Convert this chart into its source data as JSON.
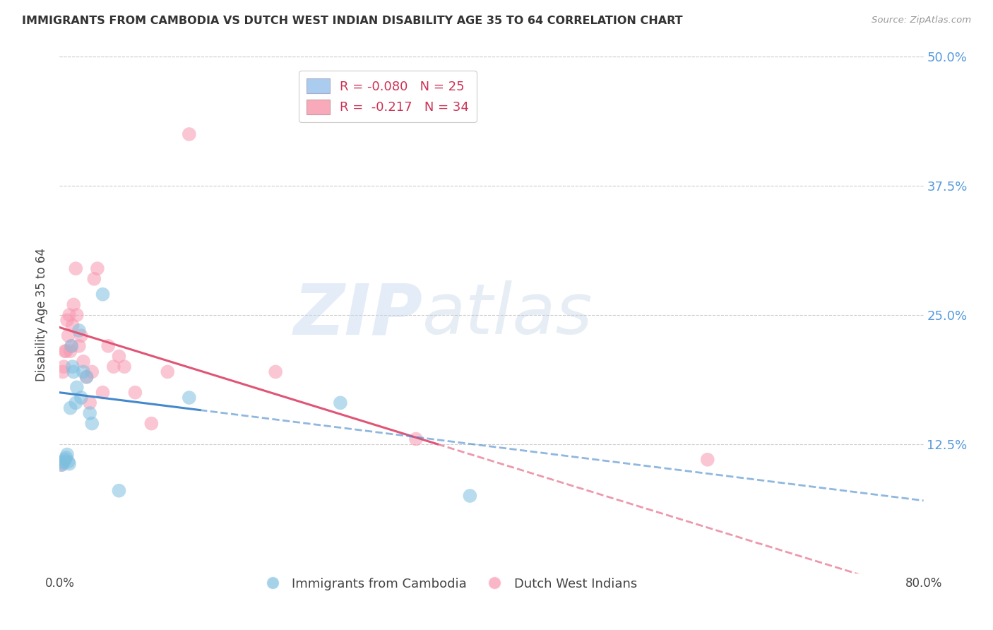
{
  "title": "IMMIGRANTS FROM CAMBODIA VS DUTCH WEST INDIAN DISABILITY AGE 35 TO 64 CORRELATION CHART",
  "source": "Source: ZipAtlas.com",
  "ylabel": "Disability Age 35 to 64",
  "xlim": [
    0.0,
    0.8
  ],
  "ylim": [
    0.0,
    0.5
  ],
  "ytick_positions": [
    0.125,
    0.25,
    0.375,
    0.5
  ],
  "ytick_labels": [
    "12.5%",
    "25.0%",
    "37.5%",
    "50.0%"
  ],
  "watermark_zip": "ZIP",
  "watermark_atlas": "atlas",
  "cambodia_color": "#7fbfdf",
  "dutch_color": "#f898b0",
  "cambodia_line_color": "#4488cc",
  "dutch_line_color": "#e05575",
  "background_color": "#ffffff",
  "grid_color": "#cccccc",
  "title_color": "#333333",
  "right_axis_color": "#5599dd",
  "legend_cam_color": "#aaccee",
  "legend_dutch_color": "#f8aabb",
  "cambodia_x": [
    0.002,
    0.003,
    0.004,
    0.005,
    0.006,
    0.007,
    0.008,
    0.009,
    0.01,
    0.011,
    0.012,
    0.013,
    0.015,
    0.016,
    0.018,
    0.02,
    0.022,
    0.025,
    0.028,
    0.03,
    0.04,
    0.055,
    0.12,
    0.26,
    0.38
  ],
  "cambodia_y": [
    0.105,
    0.107,
    0.108,
    0.11,
    0.112,
    0.115,
    0.108,
    0.106,
    0.16,
    0.22,
    0.2,
    0.195,
    0.165,
    0.18,
    0.235,
    0.17,
    0.195,
    0.19,
    0.155,
    0.145,
    0.27,
    0.08,
    0.17,
    0.165,
    0.075
  ],
  "dutch_x": [
    0.002,
    0.003,
    0.004,
    0.005,
    0.006,
    0.007,
    0.008,
    0.009,
    0.01,
    0.011,
    0.012,
    0.013,
    0.015,
    0.016,
    0.018,
    0.02,
    0.022,
    0.025,
    0.028,
    0.03,
    0.032,
    0.035,
    0.04,
    0.045,
    0.05,
    0.055,
    0.06,
    0.07,
    0.085,
    0.1,
    0.12,
    0.2,
    0.33,
    0.6
  ],
  "dutch_y": [
    0.105,
    0.195,
    0.2,
    0.215,
    0.215,
    0.245,
    0.23,
    0.25,
    0.215,
    0.22,
    0.24,
    0.26,
    0.295,
    0.25,
    0.22,
    0.23,
    0.205,
    0.19,
    0.165,
    0.195,
    0.285,
    0.295,
    0.175,
    0.22,
    0.2,
    0.21,
    0.2,
    0.175,
    0.145,
    0.195,
    0.425,
    0.195,
    0.13,
    0.11
  ],
  "cam_line_x_end": 0.13,
  "dutch_line_x_end": 0.35,
  "cam_line_start_y": 0.175,
  "cam_line_end_y": 0.158,
  "dutch_line_start_y": 0.238,
  "dutch_line_end_y": 0.125
}
